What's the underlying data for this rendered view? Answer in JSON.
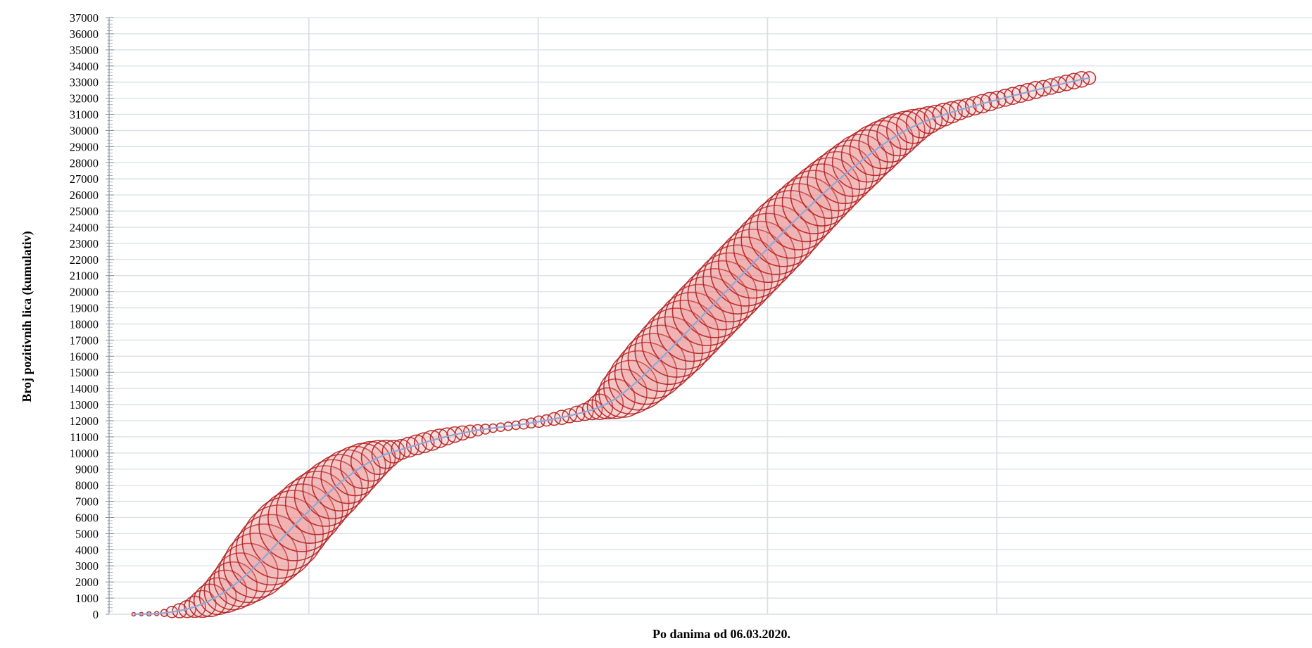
{
  "chart_data": {
    "type": "scatter",
    "subtype": "bubble",
    "title": "",
    "xlabel": "Po danima od  06.03.2020.",
    "ylabel": "Broj pozitivnih lica (kumulativ)",
    "ylim": [
      0,
      37000
    ],
    "ytick_step": 1000,
    "xlim": [
      0,
      240
    ],
    "grid": true,
    "colors": {
      "bubble_stroke": "#b11a1a",
      "bubble_fill": "#e57373",
      "trend_line": "#8fa8d8",
      "grid": "#d9dfea",
      "axis": "#8a8fa6"
    },
    "series": [
      {
        "bubble_size": "daily new cases",
        "points": [
          [
            0,
            0,
            0
          ],
          [
            2,
            10,
            2
          ],
          [
            4,
            22,
            3
          ],
          [
            6,
            40,
            3
          ],
          [
            8,
            80,
            5
          ],
          [
            10,
            140,
            8
          ],
          [
            12,
            220,
            10
          ],
          [
            14,
            320,
            12
          ],
          [
            16,
            460,
            15
          ],
          [
            18,
            640,
            19
          ],
          [
            20,
            860,
            23
          ],
          [
            22,
            1120,
            26
          ],
          [
            24,
            1420,
            30
          ],
          [
            26,
            1760,
            34
          ],
          [
            28,
            2140,
            38
          ],
          [
            30,
            2560,
            42
          ],
          [
            32,
            3020,
            46
          ],
          [
            34,
            3500,
            48
          ],
          [
            36,
            4000,
            50
          ],
          [
            38,
            4500,
            52
          ],
          [
            40,
            5000,
            52
          ],
          [
            42,
            5500,
            50
          ],
          [
            44,
            5980,
            48
          ],
          [
            46,
            6450,
            47
          ],
          [
            48,
            6900,
            45
          ],
          [
            50,
            7330,
            43
          ],
          [
            52,
            7750,
            42
          ],
          [
            54,
            8150,
            40
          ],
          [
            56,
            8530,
            38
          ],
          [
            58,
            8880,
            35
          ],
          [
            60,
            9200,
            32
          ],
          [
            62,
            9480,
            28
          ],
          [
            64,
            9720,
            24
          ],
          [
            66,
            9920,
            20
          ],
          [
            68,
            10080,
            16
          ],
          [
            70,
            10220,
            14
          ],
          [
            72,
            10360,
            14
          ],
          [
            74,
            10500,
            14
          ],
          [
            76,
            10640,
            14
          ],
          [
            78,
            10780,
            14
          ],
          [
            80,
            10910,
            13
          ],
          [
            82,
            11030,
            12
          ],
          [
            84,
            11140,
            11
          ],
          [
            86,
            11240,
            10
          ],
          [
            88,
            11330,
            9
          ],
          [
            90,
            11410,
            8
          ],
          [
            92,
            11480,
            7
          ],
          [
            94,
            11540,
            6
          ],
          [
            96,
            11600,
            6
          ],
          [
            98,
            11660,
            6
          ],
          [
            100,
            11720,
            6
          ],
          [
            102,
            11790,
            7
          ],
          [
            104,
            11860,
            7
          ],
          [
            106,
            11940,
            8
          ],
          [
            108,
            12020,
            8
          ],
          [
            110,
            12110,
            9
          ],
          [
            112,
            12210,
            10
          ],
          [
            114,
            12310,
            10
          ],
          [
            116,
            12420,
            11
          ],
          [
            118,
            12540,
            12
          ],
          [
            120,
            12680,
            14
          ],
          [
            122,
            12860,
            18
          ],
          [
            124,
            13080,
            22
          ],
          [
            126,
            13360,
            28
          ],
          [
            128,
            13700,
            34
          ],
          [
            130,
            14080,
            38
          ],
          [
            132,
            14500,
            42
          ],
          [
            134,
            14940,
            44
          ],
          [
            136,
            15400,
            46
          ],
          [
            138,
            15870,
            47
          ],
          [
            140,
            16350,
            48
          ],
          [
            142,
            16840,
            49
          ],
          [
            144,
            17330,
            49
          ],
          [
            146,
            17820,
            49
          ],
          [
            148,
            18310,
            49
          ],
          [
            150,
            18800,
            49
          ],
          [
            152,
            19290,
            49
          ],
          [
            154,
            19780,
            49
          ],
          [
            156,
            20270,
            49
          ],
          [
            158,
            20760,
            49
          ],
          [
            160,
            21250,
            49
          ],
          [
            162,
            21740,
            49
          ],
          [
            164,
            22230,
            49
          ],
          [
            166,
            22720,
            49
          ],
          [
            168,
            23210,
            49
          ],
          [
            170,
            23700,
            49
          ],
          [
            172,
            24180,
            48
          ],
          [
            174,
            24650,
            47
          ],
          [
            176,
            25110,
            46
          ],
          [
            178,
            25560,
            45
          ],
          [
            180,
            26000,
            44
          ],
          [
            182,
            26430,
            43
          ],
          [
            184,
            26850,
            42
          ],
          [
            186,
            27260,
            41
          ],
          [
            188,
            27660,
            40
          ],
          [
            190,
            28050,
            39
          ],
          [
            192,
            28420,
            37
          ],
          [
            194,
            28780,
            36
          ],
          [
            196,
            29120,
            34
          ],
          [
            198,
            29440,
            32
          ],
          [
            200,
            29740,
            30
          ],
          [
            202,
            30010,
            27
          ],
          [
            204,
            30250,
            24
          ],
          [
            206,
            30460,
            21
          ],
          [
            208,
            30650,
            19
          ],
          [
            210,
            30820,
            17
          ],
          [
            212,
            30980,
            16
          ],
          [
            214,
            31130,
            15
          ],
          [
            216,
            31270,
            14
          ],
          [
            218,
            31400,
            13
          ],
          [
            220,
            31530,
            13
          ],
          [
            222,
            31660,
            13
          ],
          [
            224,
            31790,
            13
          ],
          [
            226,
            31910,
            12
          ],
          [
            228,
            32030,
            12
          ],
          [
            230,
            32150,
            12
          ],
          [
            232,
            32270,
            12
          ],
          [
            234,
            32390,
            12
          ],
          [
            236,
            32510,
            12
          ],
          [
            238,
            32620,
            11
          ],
          [
            240,
            32730,
            11
          ],
          [
            242,
            32840,
            11
          ],
          [
            244,
            32950,
            11
          ],
          [
            246,
            33060,
            11
          ],
          [
            248,
            33170,
            11
          ],
          [
            250,
            33250,
            9
          ]
        ]
      }
    ]
  }
}
